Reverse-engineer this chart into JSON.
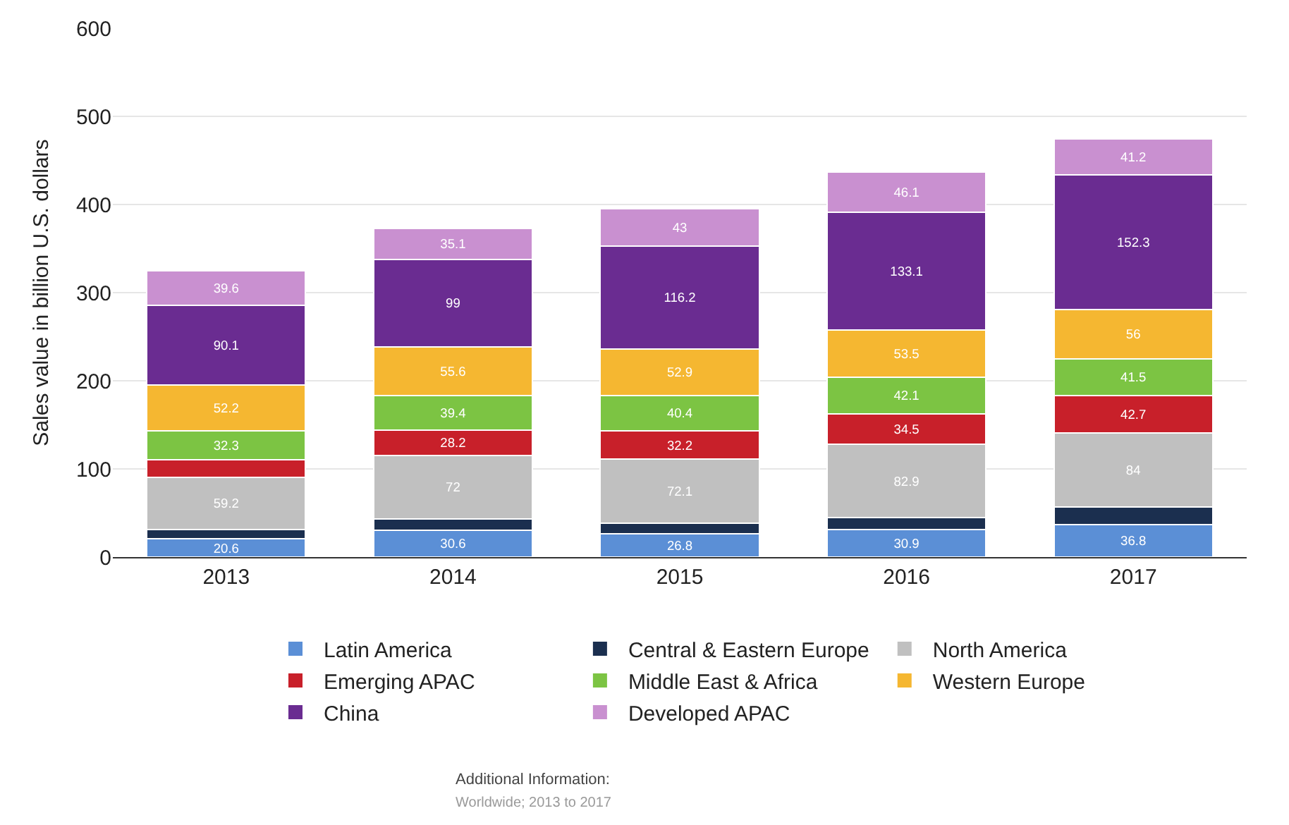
{
  "chart_data": {
    "type": "bar",
    "stacked": true,
    "ylabel": "Sales value in billion U.S. dollars",
    "categories": [
      "2013",
      "2014",
      "2015",
      "2016",
      "2017"
    ],
    "ylim": [
      0,
      600
    ],
    "yticks": [
      0,
      100,
      200,
      300,
      400,
      500,
      600
    ],
    "grid": "y",
    "legend": "bottom",
    "series": [
      {
        "name": "Latin America",
        "color": "#5b8fd6",
        "values": [
          20.6,
          30.6,
          26.8,
          30.9,
          36.8
        ],
        "value_labels": [
          "20.6",
          "30.6",
          "26.8",
          "30.9",
          "36.8"
        ]
      },
      {
        "name": "Central & Eastern Europe",
        "color": "#1b2f4f",
        "values": [
          11,
          13,
          12,
          14,
          20
        ],
        "value_labels": [
          null,
          null,
          null,
          null,
          null
        ]
      },
      {
        "name": "North America",
        "color": "#c0c0c0",
        "values": [
          59.2,
          72,
          72.1,
          82.9,
          84
        ],
        "value_labels": [
          "59.2",
          "72",
          "72.1",
          "82.9",
          "84"
        ]
      },
      {
        "name": "Emerging APAC",
        "color": "#c8202a",
        "values": [
          20,
          28.2,
          32.2,
          34.5,
          42.7
        ],
        "value_labels": [
          null,
          "28.2",
          "32.2",
          "34.5",
          "42.7"
        ]
      },
      {
        "name": "Middle East & Africa",
        "color": "#7cc443",
        "values": [
          32.3,
          39.4,
          40.4,
          42.1,
          41.5
        ],
        "value_labels": [
          "32.3",
          "39.4",
          "40.4",
          "42.1",
          "41.5"
        ]
      },
      {
        "name": "Western Europe",
        "color": "#f5b731",
        "values": [
          52.2,
          55.6,
          52.9,
          53.5,
          56
        ],
        "value_labels": [
          "52.2",
          "55.6",
          "52.9",
          "53.5",
          "56"
        ]
      },
      {
        "name": "China",
        "color": "#6a2c91",
        "values": [
          90.1,
          99,
          116.2,
          133.1,
          152.3
        ],
        "value_labels": [
          "90.1",
          "99",
          "116.2",
          "133.1",
          "152.3"
        ]
      },
      {
        "name": "Developed APAC",
        "color": "#c990d0",
        "values": [
          39.6,
          35.1,
          43,
          46.1,
          41.2
        ],
        "value_labels": [
          "39.6",
          "35.1",
          "43",
          "46.1",
          "41.2"
        ]
      }
    ],
    "annotations": [
      "Additional Information:",
      "Worldwide; 2013 to 2017"
    ]
  }
}
